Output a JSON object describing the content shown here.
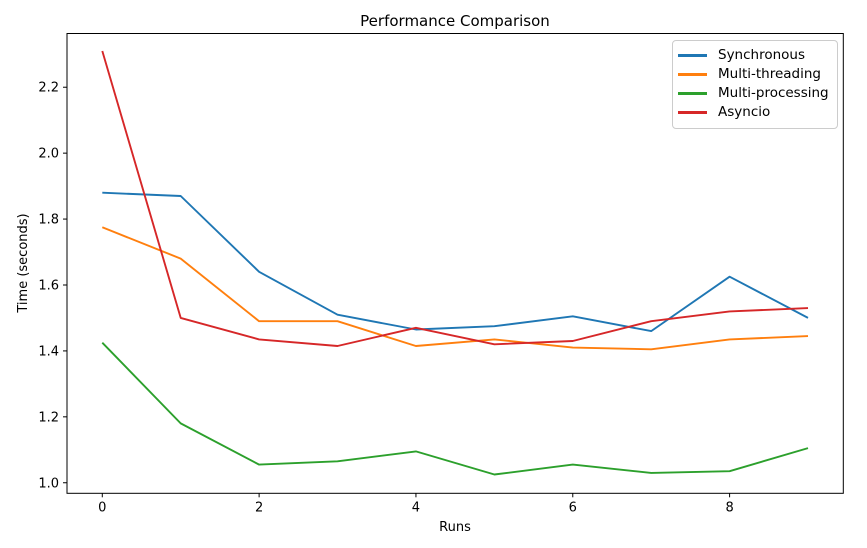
{
  "chart_data": {
    "type": "line",
    "title": "Performance Comparison",
    "xlabel": "Runs",
    "ylabel": "Time (seconds)",
    "x": [
      0,
      1,
      2,
      3,
      4,
      5,
      6,
      7,
      8,
      9
    ],
    "xticks": [
      0,
      2,
      4,
      6,
      8
    ],
    "yticks": [
      1.0,
      1.2,
      1.4,
      1.6,
      1.8,
      2.0,
      2.2
    ],
    "xlim": [
      -0.45,
      9.45
    ],
    "ylim": [
      0.968,
      2.363
    ],
    "grid": false,
    "legend_position": "upper right",
    "series": [
      {
        "name": "Synchronous",
        "color": "#1f77b4",
        "values": [
          1.88,
          1.87,
          1.64,
          1.51,
          1.465,
          1.475,
          1.505,
          1.46,
          1.625,
          1.5
        ]
      },
      {
        "name": "Multi-threading",
        "color": "#ff7f0e",
        "values": [
          1.775,
          1.68,
          1.49,
          1.49,
          1.415,
          1.435,
          1.41,
          1.405,
          1.435,
          1.445
        ]
      },
      {
        "name": "Multi-processing",
        "color": "#2ca02c",
        "values": [
          1.425,
          1.18,
          1.055,
          1.065,
          1.095,
          1.025,
          1.055,
          1.03,
          1.035,
          1.105
        ]
      },
      {
        "name": "Asyncio",
        "color": "#d62728",
        "values": [
          2.31,
          1.5,
          1.435,
          1.415,
          1.47,
          1.42,
          1.43,
          1.49,
          1.52,
          1.53
        ]
      }
    ]
  }
}
